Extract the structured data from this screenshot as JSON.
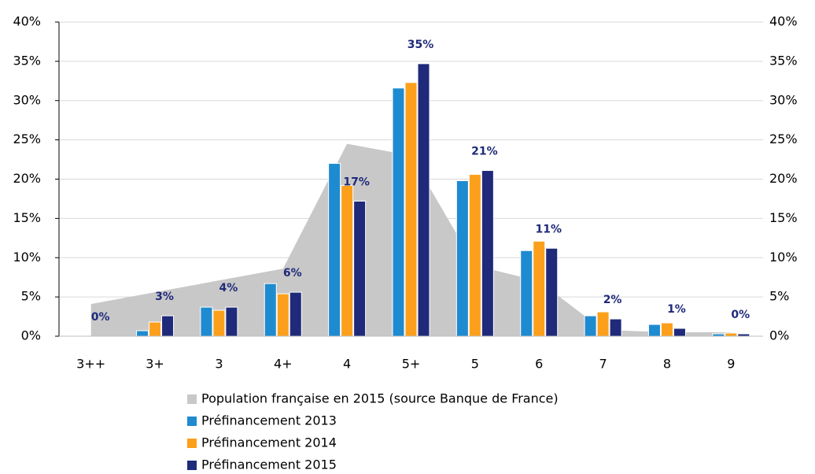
{
  "chart_data": {
    "type": "bar",
    "categories": [
      "3++",
      "3+",
      "3",
      "4+",
      "4",
      "5+",
      "5",
      "6",
      "7",
      "8",
      "9"
    ],
    "series": [
      {
        "name": "Population française en 2015 (source Banque de France)",
        "type": "area",
        "color": "#c8c8c8",
        "values": [
          4.1,
          5.6,
          7.1,
          8.6,
          24.5,
          23,
          9,
          7,
          0.8,
          0.5,
          0.5
        ]
      },
      {
        "name": "Préfinancement 2013",
        "color": "#1e8bd0",
        "values": [
          0,
          0.7,
          3.7,
          6.7,
          22,
          31.6,
          19.8,
          10.9,
          2.6,
          1.5,
          0.3
        ]
      },
      {
        "name": "Préfinancement 2014",
        "color": "#fca01c",
        "values": [
          0,
          1.8,
          3.3,
          5.4,
          19.2,
          32.3,
          20.6,
          12.1,
          3.1,
          1.7,
          0.4
        ]
      },
      {
        "name": "Préfinancement 2015",
        "color": "#1f2a7a",
        "values": [
          0,
          2.6,
          3.7,
          5.6,
          17.2,
          34.7,
          21.1,
          11.2,
          2.2,
          1.0,
          0.3
        ],
        "value_labels": [
          "0%",
          "3%",
          "4%",
          "6%",
          "17%",
          "35%",
          "21%",
          "11%",
          "2%",
          "1%",
          "0%"
        ]
      }
    ],
    "ylim": [
      0,
      40
    ],
    "yticks": [
      {
        "value": 0,
        "label": "0%"
      },
      {
        "value": 5,
        "label": "5%"
      },
      {
        "value": 10,
        "label": "10%"
      },
      {
        "value": 15,
        "label": "15%"
      },
      {
        "value": 20,
        "label": "20%"
      },
      {
        "value": 25,
        "label": "25%"
      },
      {
        "value": 30,
        "label": "30%"
      },
      {
        "value": 35,
        "label": "35%"
      },
      {
        "value": 40,
        "label": "40%"
      }
    ],
    "y2lim": [
      0,
      40
    ],
    "y2ticks": [
      {
        "value": 0,
        "label": "0%"
      },
      {
        "value": 5,
        "label": "5%"
      },
      {
        "value": 10,
        "label": "10%"
      },
      {
        "value": 15,
        "label": "15%"
      },
      {
        "value": 20,
        "label": "20%"
      },
      {
        "value": 25,
        "label": "25%"
      },
      {
        "value": 30,
        "label": "30%"
      },
      {
        "value": 35,
        "label": "35%"
      },
      {
        "value": 40,
        "label": "40%"
      }
    ],
    "grid": true,
    "legend": "bottom"
  }
}
